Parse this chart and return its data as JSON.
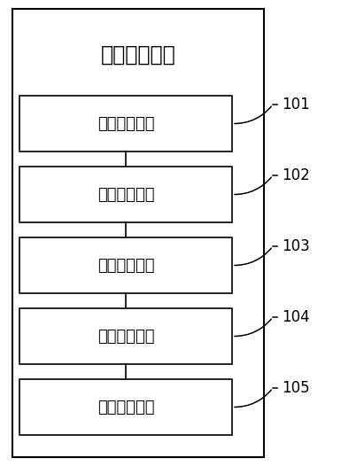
{
  "title": "参数配置模块",
  "boxes": [
    {
      "label": "点位获取单元",
      "id": "101"
    },
    {
      "label": "直连分配单元",
      "id": "102"
    },
    {
      "label": "转发分配单元",
      "id": "103"
    },
    {
      "label": "波段分配单元",
      "id": "104"
    },
    {
      "label": "配置生成单元",
      "id": "105"
    }
  ],
  "bg_color": "#ffffff",
  "box_edge": "#000000",
  "text_color": "#000000",
  "title_fontsize": 17,
  "label_fontsize": 13,
  "ref_fontsize": 12,
  "fig_width": 3.85,
  "fig_height": 5.26,
  "dpi": 100,
  "outer_lw": 1.5,
  "inner_lw": 1.2
}
